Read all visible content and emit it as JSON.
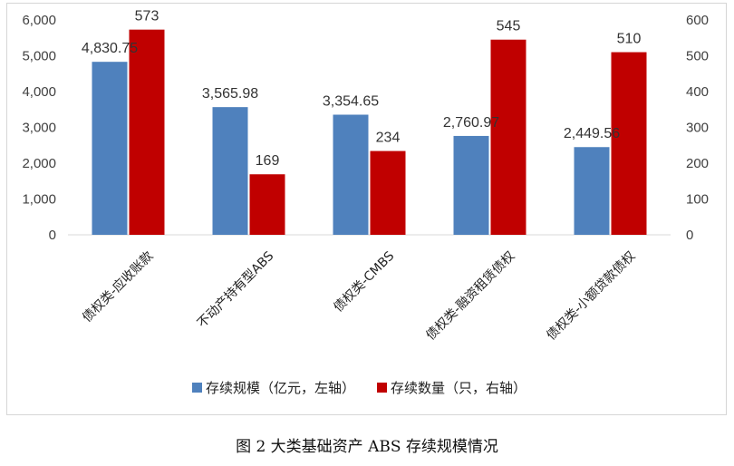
{
  "caption": "图 2   大类基础资产 ABS 存续规模情况",
  "colors": {
    "series1": "#4F81BD",
    "series2": "#C00000"
  },
  "chart_data": {
    "type": "bar",
    "categories": [
      "债权类-应收账款",
      "不动产持有型ABS",
      "债权类-CMBS",
      "债权类-融资租赁债权",
      "债权类-小额贷款债权"
    ],
    "series": [
      {
        "name": "存续规模（亿元，左轴）",
        "axis": "left",
        "values": [
          4830.75,
          3565.98,
          3354.65,
          2760.97,
          2449.56
        ],
        "labels": [
          "4,830.75",
          "3,565.98",
          "3,354.65",
          "2,760.97",
          "2,449.56"
        ]
      },
      {
        "name": "存续数量（只，右轴）",
        "axis": "right",
        "values": [
          573,
          169,
          234,
          545,
          510
        ],
        "labels": [
          "573",
          "169",
          "234",
          "545",
          "510"
        ]
      }
    ],
    "y_left": {
      "ylim": [
        0,
        6000
      ],
      "ticks": [
        "0",
        "1,000",
        "2,000",
        "3,000",
        "4,000",
        "5,000",
        "6,000"
      ]
    },
    "y_right": {
      "ylim": [
        0,
        600
      ],
      "ticks": [
        "0",
        "100",
        "200",
        "300",
        "400",
        "500",
        "600"
      ]
    },
    "grid": false,
    "legend_position": "bottom"
  }
}
